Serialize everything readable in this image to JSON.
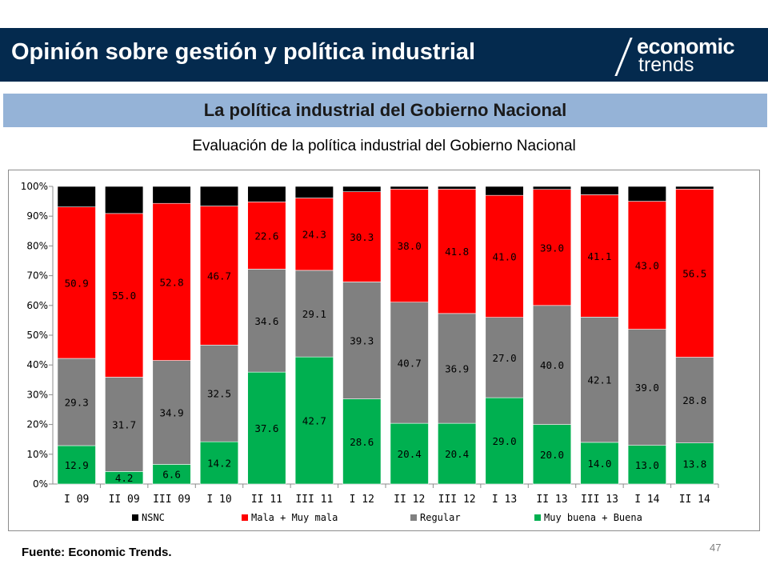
{
  "header": {
    "title": "Opinión sobre gestión y política industrial"
  },
  "logo": {
    "line1": "economic",
    "line2": "trends"
  },
  "subheader": {
    "title": "La política industrial del Gobierno Nacional"
  },
  "footer": {
    "source": "Fuente: Economic Trends.",
    "page_number": "47"
  },
  "colors": {
    "header_bg": "#042a4e",
    "subheader_bg": "#95b3d7",
    "nsnc": "#000000",
    "mala": "#ff0000",
    "regular": "#808080",
    "buena": "#00b050"
  },
  "chart_data": {
    "type": "bar",
    "stacked": true,
    "percent": true,
    "title": "Evaluación de la política industrial del Gobierno Nacional",
    "categories": [
      "I 09",
      "II 09",
      "III 09",
      "I 10",
      "II 11",
      "III 11",
      "I 12",
      "II 12",
      "III 12",
      "I 13",
      "II 13",
      "III 13",
      "I 14",
      "II 14"
    ],
    "yticks": [
      "0%",
      "10%",
      "20%",
      "30%",
      "40%",
      "50%",
      "60%",
      "70%",
      "80%",
      "90%",
      "100%"
    ],
    "ylim": [
      0,
      100
    ],
    "grid": false,
    "legend_position": "bottom",
    "series": [
      {
        "name": "Muy buena + Buena",
        "color": "#00b050",
        "values": [
          12.9,
          4.2,
          6.6,
          14.2,
          37.6,
          42.7,
          28.6,
          20.4,
          20.4,
          29.0,
          20.0,
          14.0,
          13.0,
          13.8
        ]
      },
      {
        "name": "Regular",
        "color": "#808080",
        "values": [
          29.3,
          31.7,
          34.9,
          32.5,
          34.6,
          29.1,
          39.3,
          40.7,
          36.9,
          27.0,
          40.0,
          42.1,
          39.0,
          28.8
        ]
      },
      {
        "name": "Mala + Muy mala",
        "color": "#ff0000",
        "values": [
          50.9,
          55.0,
          52.8,
          46.7,
          22.6,
          24.3,
          30.3,
          38.0,
          41.8,
          41.0,
          39.0,
          41.1,
          43.0,
          56.5
        ]
      },
      {
        "name": "NSNC",
        "color": "#000000",
        "values": [
          6.9,
          9.1,
          5.7,
          6.6,
          5.2,
          3.9,
          1.8,
          0.9,
          0.9,
          3.0,
          1.0,
          2.8,
          5.0,
          0.9
        ]
      }
    ],
    "labels": {
      "Muy buena + Buena": [
        "12.9",
        "4.2",
        "6.6",
        "14.2",
        "37.6",
        "42.7",
        "28.6",
        "20.4",
        "20.4",
        "29.0",
        "20.0",
        "14.0",
        "13.0",
        "13.8"
      ],
      "Regular": [
        "29.3",
        "31.7",
        "34.9",
        "32.5",
        "34.6",
        "29.1",
        "39.3",
        "40.7",
        "36.9",
        "27.0",
        "40.0",
        "42.1",
        "39.0",
        "28.8"
      ],
      "Mala + Muy mala": [
        "50.9",
        "55.0",
        "52.8",
        "46.7",
        "22.6",
        "24.3",
        "30.3",
        "38.0",
        "41.8",
        "41.0",
        "39.0",
        "41.1",
        "43.0",
        "56.5"
      ]
    },
    "legend_order": [
      "NSNC",
      "Mala + Muy mala",
      "Regular",
      "Muy buena + Buena"
    ]
  }
}
